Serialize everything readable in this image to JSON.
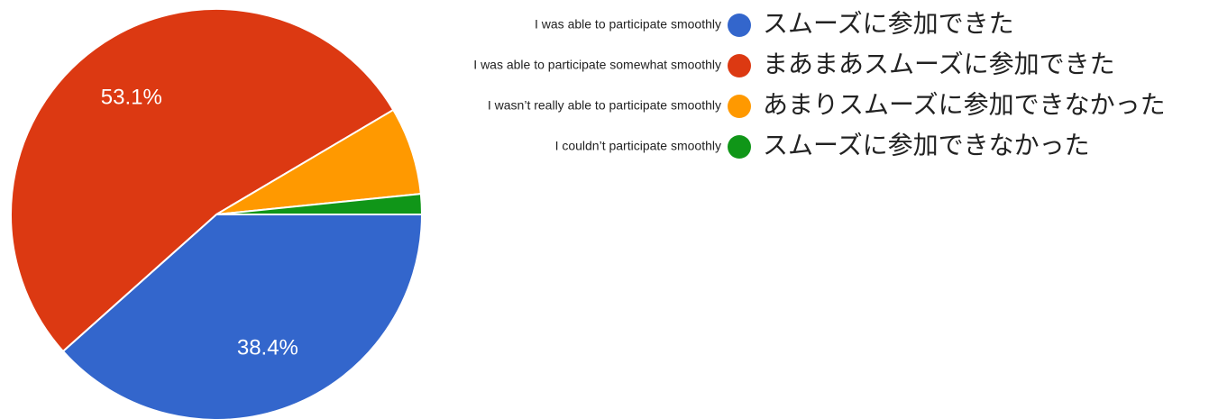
{
  "chart_data": {
    "type": "pie",
    "categories": [
      "スムーズに参加できた",
      "まあまあスムーズに参加できた",
      "あまりスムーズに参加できなかった",
      "スムーズに参加できなかった"
    ],
    "annotations": [
      "I was able to participate smoothly",
      "I was able to participate somewhat smoothly",
      "I wasn’t really able to participate smoothly",
      "I couldn’t participate smoothly"
    ],
    "values": [
      38.4,
      53.1,
      6.9,
      1.6
    ],
    "value_labels": [
      "38.4%",
      "53.1%",
      null,
      null
    ],
    "colors": [
      "#3366cc",
      "#dc3912",
      "#ff9900",
      "#109618"
    ]
  }
}
